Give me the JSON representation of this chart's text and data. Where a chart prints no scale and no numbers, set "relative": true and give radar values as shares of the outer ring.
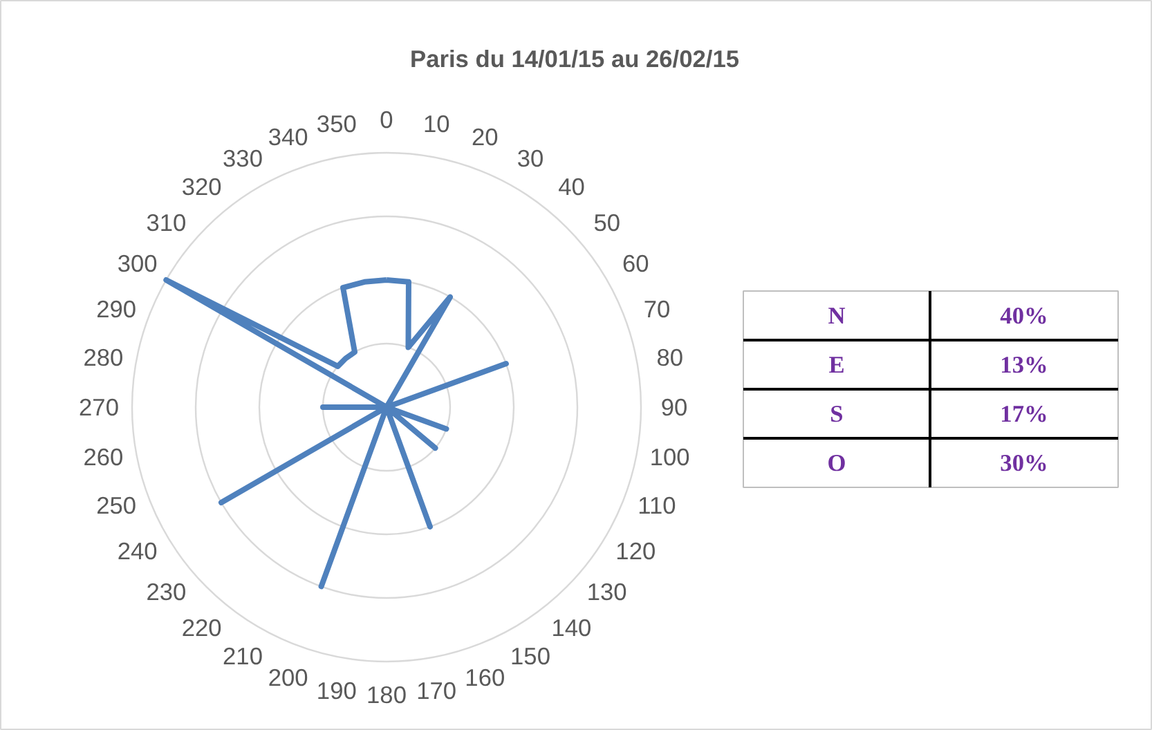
{
  "chart_data": [
    {
      "type": "radar",
      "title": "Paris du 14/01/15 au 26/02/15",
      "categories": [
        "0",
        "10",
        "20",
        "30",
        "40",
        "50",
        "60",
        "70",
        "80",
        "90",
        "100",
        "110",
        "120",
        "130",
        "140",
        "150",
        "160",
        "170",
        "180",
        "190",
        "200",
        "210",
        "220",
        "230",
        "240",
        "250",
        "260",
        "270",
        "280",
        "290",
        "300",
        "310",
        "320",
        "330",
        "340",
        "350"
      ],
      "relative": true,
      "grid": true,
      "series": [
        {
          "color": "#4f81bd",
          "values": [
            0.5,
            0.5,
            0.25,
            0.5,
            0,
            0,
            0,
            0.5,
            0,
            0,
            0,
            0.25,
            0,
            0.25,
            0,
            0,
            0.5,
            0,
            0,
            0,
            0.75,
            0,
            0,
            0,
            0.75,
            0,
            0,
            0.25,
            0,
            0,
            1,
            0.25,
            0.25,
            0.25,
            0.5,
            0.5
          ]
        }
      ]
    },
    {
      "type": "other",
      "categories": [
        "N",
        "E",
        "S",
        "O"
      ],
      "value_labels": [
        "40%",
        "13%",
        "17%",
        "30%"
      ],
      "color": "#7030a0"
    }
  ]
}
